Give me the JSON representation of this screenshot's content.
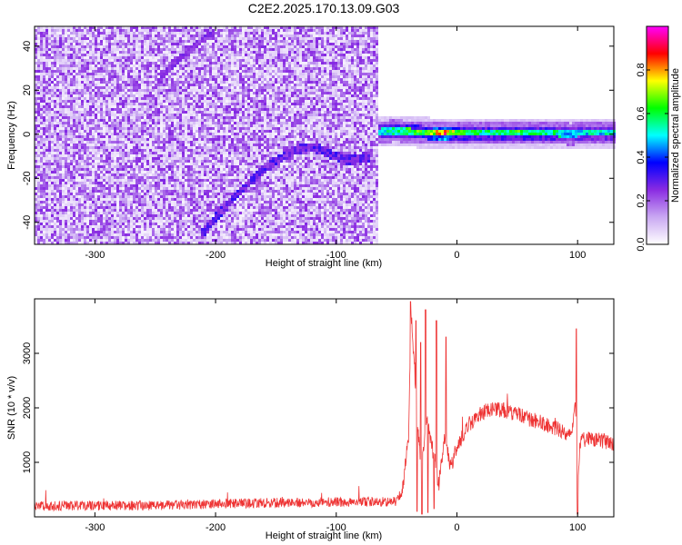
{
  "figure": {
    "title": "C2E2.2025.170.13.09.G03"
  },
  "chart_data": [
    {
      "type": "heatmap",
      "xlabel": "Height of straight line (km)",
      "ylabel": "Frequency (Hz)",
      "xlim": [
        -350,
        130
      ],
      "ylim": [
        -50,
        49
      ],
      "x_ticks": [
        -300,
        -200,
        -100,
        0,
        100
      ],
      "y_ticks": [
        -40,
        -20,
        0,
        20,
        40
      ],
      "colorbar": {
        "label": "Normalized spectral amplitude",
        "range": [
          0,
          1
        ],
        "ticks": [
          0.0,
          0.2,
          0.4,
          0.6,
          0.8
        ],
        "colors": [
          "#ffffff",
          "#c9a8f2",
          "#8a2be2",
          "#0000ff",
          "#00ffff",
          "#00ff00",
          "#ffff00",
          "#ff0000",
          "#ff00ff"
        ]
      },
      "noise_region_x": [
        -350,
        -65
      ],
      "noise_level": 0.2,
      "signal_track": {
        "x": [
          -212,
          -200,
          -185,
          -170,
          -155,
          -140,
          -128,
          -118,
          -105,
          -90,
          -72
        ],
        "y": [
          -46,
          -38,
          -29,
          -21,
          -14,
          -9,
          -6,
          -6,
          -9,
          -12,
          -10
        ]
      },
      "faint_track": {
        "x": [
          -245,
          -230,
          -215,
          -200
        ],
        "y": [
          26,
          34,
          41,
          47
        ]
      },
      "carrier_band": {
        "x": [
          -65,
          -50,
          -35,
          -20,
          -10,
          0,
          20,
          50,
          80,
          95,
          100,
          110,
          130
        ],
        "y": [
          1,
          1.5,
          1,
          0.5,
          0.5,
          0.5,
          0.5,
          0.5,
          0.5,
          0,
          0.5,
          0.5,
          0.5
        ],
        "amplitude": [
          0.5,
          0.55,
          0.6,
          0.7,
          0.85,
          0.6,
          0.55,
          0.6,
          0.55,
          0.45,
          0.5,
          0.5,
          0.5
        ]
      }
    },
    {
      "type": "line",
      "xlabel": "Height of straight line (km)",
      "ylabel": "SNR (10 * v/v)",
      "xlim": [
        -350,
        130
      ],
      "ylim": [
        0,
        4000
      ],
      "x_ticks": [
        -300,
        -200,
        -100,
        0,
        100
      ],
      "y_ticks": [
        1000,
        2000,
        3000
      ],
      "color": "#ee3333",
      "envelope": {
        "x": [
          -350,
          -250,
          -150,
          -100,
          -50,
          -45,
          -40,
          -38,
          -35,
          -30,
          -25,
          -20,
          -15,
          -10,
          -5,
          0,
          10,
          20,
          30,
          40,
          60,
          80,
          95,
          98,
          100,
          102,
          110,
          130
        ],
        "y": [
          200,
          210,
          260,
          270,
          280,
          500,
          1500,
          3800,
          2600,
          900,
          1800,
          1200,
          600,
          1500,
          900,
          1300,
          1700,
          1900,
          2000,
          1950,
          1800,
          1650,
          1500,
          2200,
          400,
          1400,
          1450,
          1350
        ]
      },
      "spikes": [
        {
          "x": -38.5,
          "y": 3950
        },
        {
          "x": -34,
          "y": 3600
        },
        {
          "x": -30,
          "y": 3200
        },
        {
          "x": -26,
          "y": 3800
        },
        {
          "x": -17,
          "y": 3600
        },
        {
          "x": -9,
          "y": 3300
        },
        {
          "x": 99,
          "y": 3450
        }
      ],
      "dips": [
        {
          "x": -33,
          "y": 100
        },
        {
          "x": -29,
          "y": 50
        },
        {
          "x": -24,
          "y": 80
        },
        {
          "x": -19,
          "y": 150
        },
        {
          "x": 100,
          "y": 50
        }
      ],
      "noise_amp": 90
    }
  ]
}
